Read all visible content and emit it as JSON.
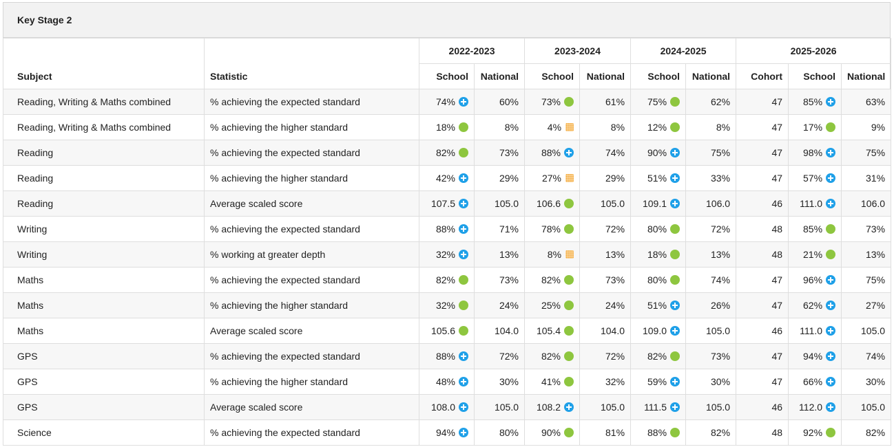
{
  "panel": {
    "title": "Key Stage 2"
  },
  "columns": {
    "subject": "Subject",
    "statistic": "Statistic",
    "years": [
      {
        "label": "2022-2023",
        "cols": [
          "School",
          "National"
        ]
      },
      {
        "label": "2023-2024",
        "cols": [
          "School",
          "National"
        ]
      },
      {
        "label": "2024-2025",
        "cols": [
          "School",
          "National"
        ]
      },
      {
        "label": "2025-2026",
        "cols": [
          "Cohort",
          "School",
          "National"
        ]
      }
    ]
  },
  "indicator_legend": {
    "plus": {
      "icon": "plus-circle-icon",
      "color": "#1fa0e8"
    },
    "dot": {
      "icon": "green-dot-icon",
      "color": "#8ec63f"
    },
    "square": {
      "icon": "orange-square-icon",
      "color": "#f6b654"
    }
  },
  "rows": [
    {
      "subject": "Reading, Writing & Maths combined",
      "statistic": "% achieving the expected standard",
      "y1_school": "74%",
      "y1_school_icon": "plus",
      "y1_national": "60%",
      "y2_school": "73%",
      "y2_school_icon": "dot",
      "y2_national": "61%",
      "y3_school": "75%",
      "y3_school_icon": "dot",
      "y3_national": "62%",
      "y4_cohort": "47",
      "y4_school": "85%",
      "y4_school_icon": "plus",
      "y4_national": "63%"
    },
    {
      "subject": "Reading, Writing & Maths combined",
      "statistic": "% achieving the higher standard",
      "y1_school": "18%",
      "y1_school_icon": "dot",
      "y1_national": "8%",
      "y2_school": "4%",
      "y2_school_icon": "square",
      "y2_national": "8%",
      "y3_school": "12%",
      "y3_school_icon": "dot",
      "y3_national": "8%",
      "y4_cohort": "47",
      "y4_school": "17%",
      "y4_school_icon": "dot",
      "y4_national": "9%"
    },
    {
      "subject": "Reading",
      "statistic": "% achieving the expected standard",
      "y1_school": "82%",
      "y1_school_icon": "dot",
      "y1_national": "73%",
      "y2_school": "88%",
      "y2_school_icon": "plus",
      "y2_national": "74%",
      "y3_school": "90%",
      "y3_school_icon": "plus",
      "y3_national": "75%",
      "y4_cohort": "47",
      "y4_school": "98%",
      "y4_school_icon": "plus",
      "y4_national": "75%"
    },
    {
      "subject": "Reading",
      "statistic": "% achieving the higher standard",
      "y1_school": "42%",
      "y1_school_icon": "plus",
      "y1_national": "29%",
      "y2_school": "27%",
      "y2_school_icon": "square",
      "y2_national": "29%",
      "y3_school": "51%",
      "y3_school_icon": "plus",
      "y3_national": "33%",
      "y4_cohort": "47",
      "y4_school": "57%",
      "y4_school_icon": "plus",
      "y4_national": "31%"
    },
    {
      "subject": "Reading",
      "statistic": "Average scaled score",
      "y1_school": "107.5",
      "y1_school_icon": "plus",
      "y1_national": "105.0",
      "y2_school": "106.6",
      "y2_school_icon": "dot",
      "y2_national": "105.0",
      "y3_school": "109.1",
      "y3_school_icon": "plus",
      "y3_national": "106.0",
      "y4_cohort": "46",
      "y4_school": "111.0",
      "y4_school_icon": "plus",
      "y4_national": "106.0"
    },
    {
      "subject": "Writing",
      "statistic": "% achieving the expected standard",
      "y1_school": "88%",
      "y1_school_icon": "plus",
      "y1_national": "71%",
      "y2_school": "78%",
      "y2_school_icon": "dot",
      "y2_national": "72%",
      "y3_school": "80%",
      "y3_school_icon": "dot",
      "y3_national": "72%",
      "y4_cohort": "48",
      "y4_school": "85%",
      "y4_school_icon": "dot",
      "y4_national": "73%"
    },
    {
      "subject": "Writing",
      "statistic": "% working at greater depth",
      "y1_school": "32%",
      "y1_school_icon": "plus",
      "y1_national": "13%",
      "y2_school": "8%",
      "y2_school_icon": "square",
      "y2_national": "13%",
      "y3_school": "18%",
      "y3_school_icon": "dot",
      "y3_national": "13%",
      "y4_cohort": "48",
      "y4_school": "21%",
      "y4_school_icon": "dot",
      "y4_national": "13%"
    },
    {
      "subject": "Maths",
      "statistic": "% achieving the expected standard",
      "y1_school": "82%",
      "y1_school_icon": "dot",
      "y1_national": "73%",
      "y2_school": "82%",
      "y2_school_icon": "dot",
      "y2_national": "73%",
      "y3_school": "80%",
      "y3_school_icon": "dot",
      "y3_national": "74%",
      "y4_cohort": "47",
      "y4_school": "96%",
      "y4_school_icon": "plus",
      "y4_national": "75%"
    },
    {
      "subject": "Maths",
      "statistic": "% achieving the higher standard",
      "y1_school": "32%",
      "y1_school_icon": "dot",
      "y1_national": "24%",
      "y2_school": "25%",
      "y2_school_icon": "dot",
      "y2_national": "24%",
      "y3_school": "51%",
      "y3_school_icon": "plus",
      "y3_national": "26%",
      "y4_cohort": "47",
      "y4_school": "62%",
      "y4_school_icon": "plus",
      "y4_national": "27%"
    },
    {
      "subject": "Maths",
      "statistic": "Average scaled score",
      "y1_school": "105.6",
      "y1_school_icon": "dot",
      "y1_national": "104.0",
      "y2_school": "105.4",
      "y2_school_icon": "dot",
      "y2_national": "104.0",
      "y3_school": "109.0",
      "y3_school_icon": "plus",
      "y3_national": "105.0",
      "y4_cohort": "46",
      "y4_school": "111.0",
      "y4_school_icon": "plus",
      "y4_national": "105.0"
    },
    {
      "subject": "GPS",
      "statistic": "% achieving the expected standard",
      "y1_school": "88%",
      "y1_school_icon": "plus",
      "y1_national": "72%",
      "y2_school": "82%",
      "y2_school_icon": "dot",
      "y2_national": "72%",
      "y3_school": "82%",
      "y3_school_icon": "dot",
      "y3_national": "73%",
      "y4_cohort": "47",
      "y4_school": "94%",
      "y4_school_icon": "plus",
      "y4_national": "74%"
    },
    {
      "subject": "GPS",
      "statistic": "% achieving the higher standard",
      "y1_school": "48%",
      "y1_school_icon": "plus",
      "y1_national": "30%",
      "y2_school": "41%",
      "y2_school_icon": "dot",
      "y2_national": "32%",
      "y3_school": "59%",
      "y3_school_icon": "plus",
      "y3_national": "30%",
      "y4_cohort": "47",
      "y4_school": "66%",
      "y4_school_icon": "plus",
      "y4_national": "30%"
    },
    {
      "subject": "GPS",
      "statistic": "Average scaled score",
      "y1_school": "108.0",
      "y1_school_icon": "plus",
      "y1_national": "105.0",
      "y2_school": "108.2",
      "y2_school_icon": "plus",
      "y2_national": "105.0",
      "y3_school": "111.5",
      "y3_school_icon": "plus",
      "y3_national": "105.0",
      "y4_cohort": "46",
      "y4_school": "112.0",
      "y4_school_icon": "plus",
      "y4_national": "105.0"
    },
    {
      "subject": "Science",
      "statistic": "% achieving the expected standard",
      "y1_school": "94%",
      "y1_school_icon": "plus",
      "y1_national": "80%",
      "y2_school": "90%",
      "y2_school_icon": "dot",
      "y2_national": "81%",
      "y3_school": "88%",
      "y3_school_icon": "dot",
      "y3_national": "82%",
      "y4_cohort": "48",
      "y4_school": "92%",
      "y4_school_icon": "dot",
      "y4_national": "82%"
    }
  ]
}
